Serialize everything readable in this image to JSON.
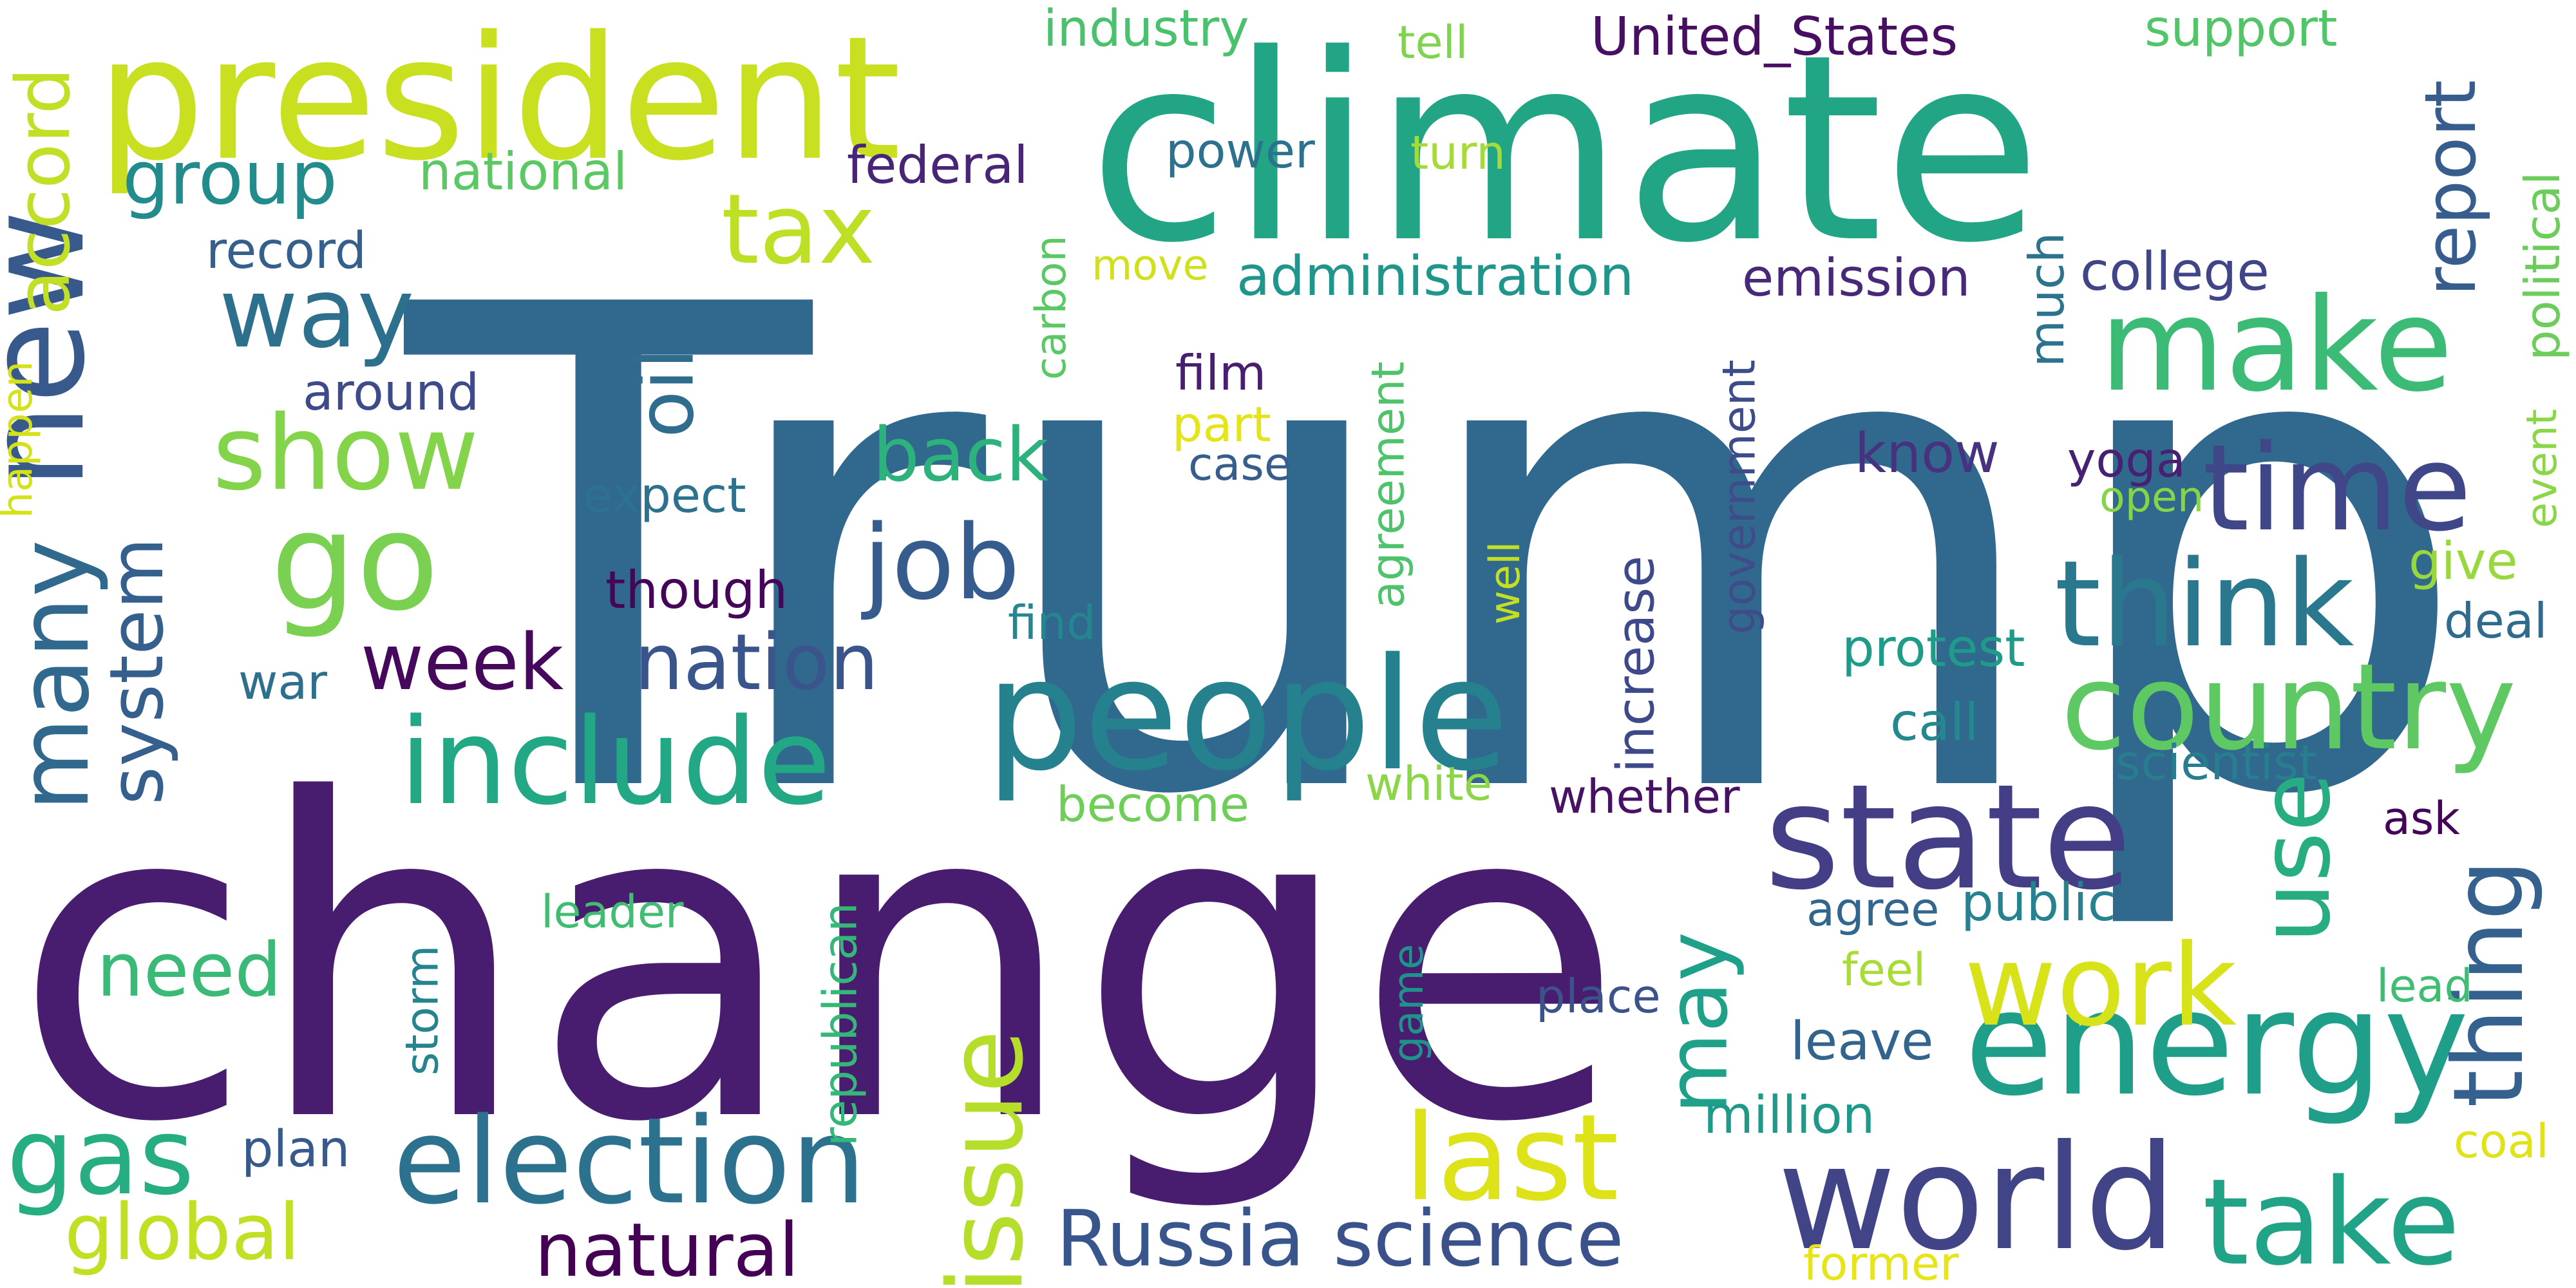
{
  "word_cloud": {
    "words": [
      {
        "text": "Trump",
        "color": "#31688e"
      },
      {
        "text": "change",
        "color": "#481c6e"
      },
      {
        "text": "climate",
        "color": "#21a585"
      },
      {
        "text": "president",
        "color": "#c8e020"
      },
      {
        "text": "people",
        "color": "#26818e"
      },
      {
        "text": "make",
        "color": "#3bbb75"
      },
      {
        "text": "state",
        "color": "#433e85"
      },
      {
        "text": "energy",
        "color": "#1f9e89"
      },
      {
        "text": "world",
        "color": "#414487"
      },
      {
        "text": "country",
        "color": "#5ec962"
      },
      {
        "text": "election",
        "color": "#2c728e"
      },
      {
        "text": "include",
        "color": "#22a884"
      },
      {
        "text": "think",
        "color": "#2a788e"
      },
      {
        "text": "last",
        "color": "#dde318"
      },
      {
        "text": "take",
        "color": "#20a386"
      },
      {
        "text": "time",
        "color": "#3f4788"
      },
      {
        "text": "work",
        "color": "#d8e219"
      },
      {
        "text": "go",
        "color": "#7ad151"
      },
      {
        "text": "new",
        "color": "#38598c"
      },
      {
        "text": "show",
        "color": "#84d44b"
      },
      {
        "text": "tax",
        "color": "#bddf26"
      },
      {
        "text": "way",
        "color": "#2d708e"
      },
      {
        "text": "job",
        "color": "#365c8d"
      },
      {
        "text": "issue",
        "color": "#b5de2b"
      },
      {
        "text": "use",
        "color": "#27ad81"
      },
      {
        "text": "thing",
        "color": "#34618d"
      },
      {
        "text": "may",
        "color": "#1fa088"
      },
      {
        "text": "gas",
        "color": "#26ad81"
      },
      {
        "text": "many",
        "color": "#31688e"
      },
      {
        "text": "nation",
        "color": "#3a548c"
      },
      {
        "text": "week",
        "color": "#46085c"
      },
      {
        "text": "Russia",
        "color": "#39568c"
      },
      {
        "text": "science",
        "color": "#3b518b"
      },
      {
        "text": "natural",
        "color": "#440154"
      },
      {
        "text": "global",
        "color": "#c2df23"
      },
      {
        "text": "need",
        "color": "#3aba76"
      },
      {
        "text": "system",
        "color": "#355f8d"
      },
      {
        "text": "group",
        "color": "#228c8d"
      },
      {
        "text": "back",
        "color": "#2db27d"
      },
      {
        "text": "oil",
        "color": "#2f6c8e"
      },
      {
        "text": "report",
        "color": "#365d8d"
      },
      {
        "text": "accord",
        "color": "#c0df25"
      },
      {
        "text": "United_States",
        "color": "#470e61"
      },
      {
        "text": "industry",
        "color": "#4ac16d"
      },
      {
        "text": "support",
        "color": "#52c569"
      },
      {
        "text": "tell",
        "color": "#7fd34e"
      },
      {
        "text": "national",
        "color": "#5cc863"
      },
      {
        "text": "federal",
        "color": "#482576"
      },
      {
        "text": "power",
        "color": "#2c728e"
      },
      {
        "text": "turn",
        "color": "#a5db36"
      },
      {
        "text": "record",
        "color": "#35608d"
      },
      {
        "text": "administration",
        "color": "#1f968b"
      },
      {
        "text": "emission",
        "color": "#482878"
      },
      {
        "text": "college",
        "color": "#404588"
      },
      {
        "text": "political",
        "color": "#6ccd5a"
      },
      {
        "text": "carbon",
        "color": "#5ac864"
      },
      {
        "text": "move",
        "color": "#d0e11c"
      },
      {
        "text": "much",
        "color": "#2c738e"
      },
      {
        "text": "film",
        "color": "#481f70"
      },
      {
        "text": "part",
        "color": "#e5e419"
      },
      {
        "text": "case",
        "color": "#355e8d"
      },
      {
        "text": "around",
        "color": "#3e4a89"
      },
      {
        "text": "expect",
        "color": "#2c728e"
      },
      {
        "text": "agreement",
        "color": "#4ec36b"
      },
      {
        "text": "government",
        "color": "#3e4c8a"
      },
      {
        "text": "know",
        "color": "#46327e"
      },
      {
        "text": "yoga",
        "color": "#482071"
      },
      {
        "text": "open",
        "color": "#86d549"
      },
      {
        "text": "event",
        "color": "#8bd646"
      },
      {
        "text": "give",
        "color": "#99d83c"
      },
      {
        "text": "happen",
        "color": "#d5e21a"
      },
      {
        "text": "though",
        "color": "#450559"
      },
      {
        "text": "find",
        "color": "#24868e"
      },
      {
        "text": "well",
        "color": "#c2df23"
      },
      {
        "text": "increase",
        "color": "#3e4989"
      },
      {
        "text": "deal",
        "color": "#2f6b8e"
      },
      {
        "text": "war",
        "color": "#2e6f8e"
      },
      {
        "text": "protest",
        "color": "#1e9c89"
      },
      {
        "text": "call",
        "color": "#23898e"
      },
      {
        "text": "scientist",
        "color": "#287d8e"
      },
      {
        "text": "white",
        "color": "#8bd646"
      },
      {
        "text": "whether",
        "color": "#471164"
      },
      {
        "text": "become",
        "color": "#6ece58"
      },
      {
        "text": "ask",
        "color": "#450457"
      },
      {
        "text": "republican",
        "color": "#35b779"
      },
      {
        "text": "leader",
        "color": "#40bd72"
      },
      {
        "text": "agree",
        "color": "#31678e"
      },
      {
        "text": "public",
        "color": "#26828e"
      },
      {
        "text": "storm",
        "color": "#25848e"
      },
      {
        "text": "game",
        "color": "#20928c"
      },
      {
        "text": "place",
        "color": "#3b528b"
      },
      {
        "text": "feel",
        "color": "#a8db34"
      },
      {
        "text": "lead",
        "color": "#40bd72"
      },
      {
        "text": "leave",
        "color": "#32648e"
      },
      {
        "text": "million",
        "color": "#1f9a8a"
      },
      {
        "text": "plan",
        "color": "#38598c"
      },
      {
        "text": "coal",
        "color": "#dfe318"
      },
      {
        "text": "former",
        "color": "#e7e419"
      }
    ]
  }
}
